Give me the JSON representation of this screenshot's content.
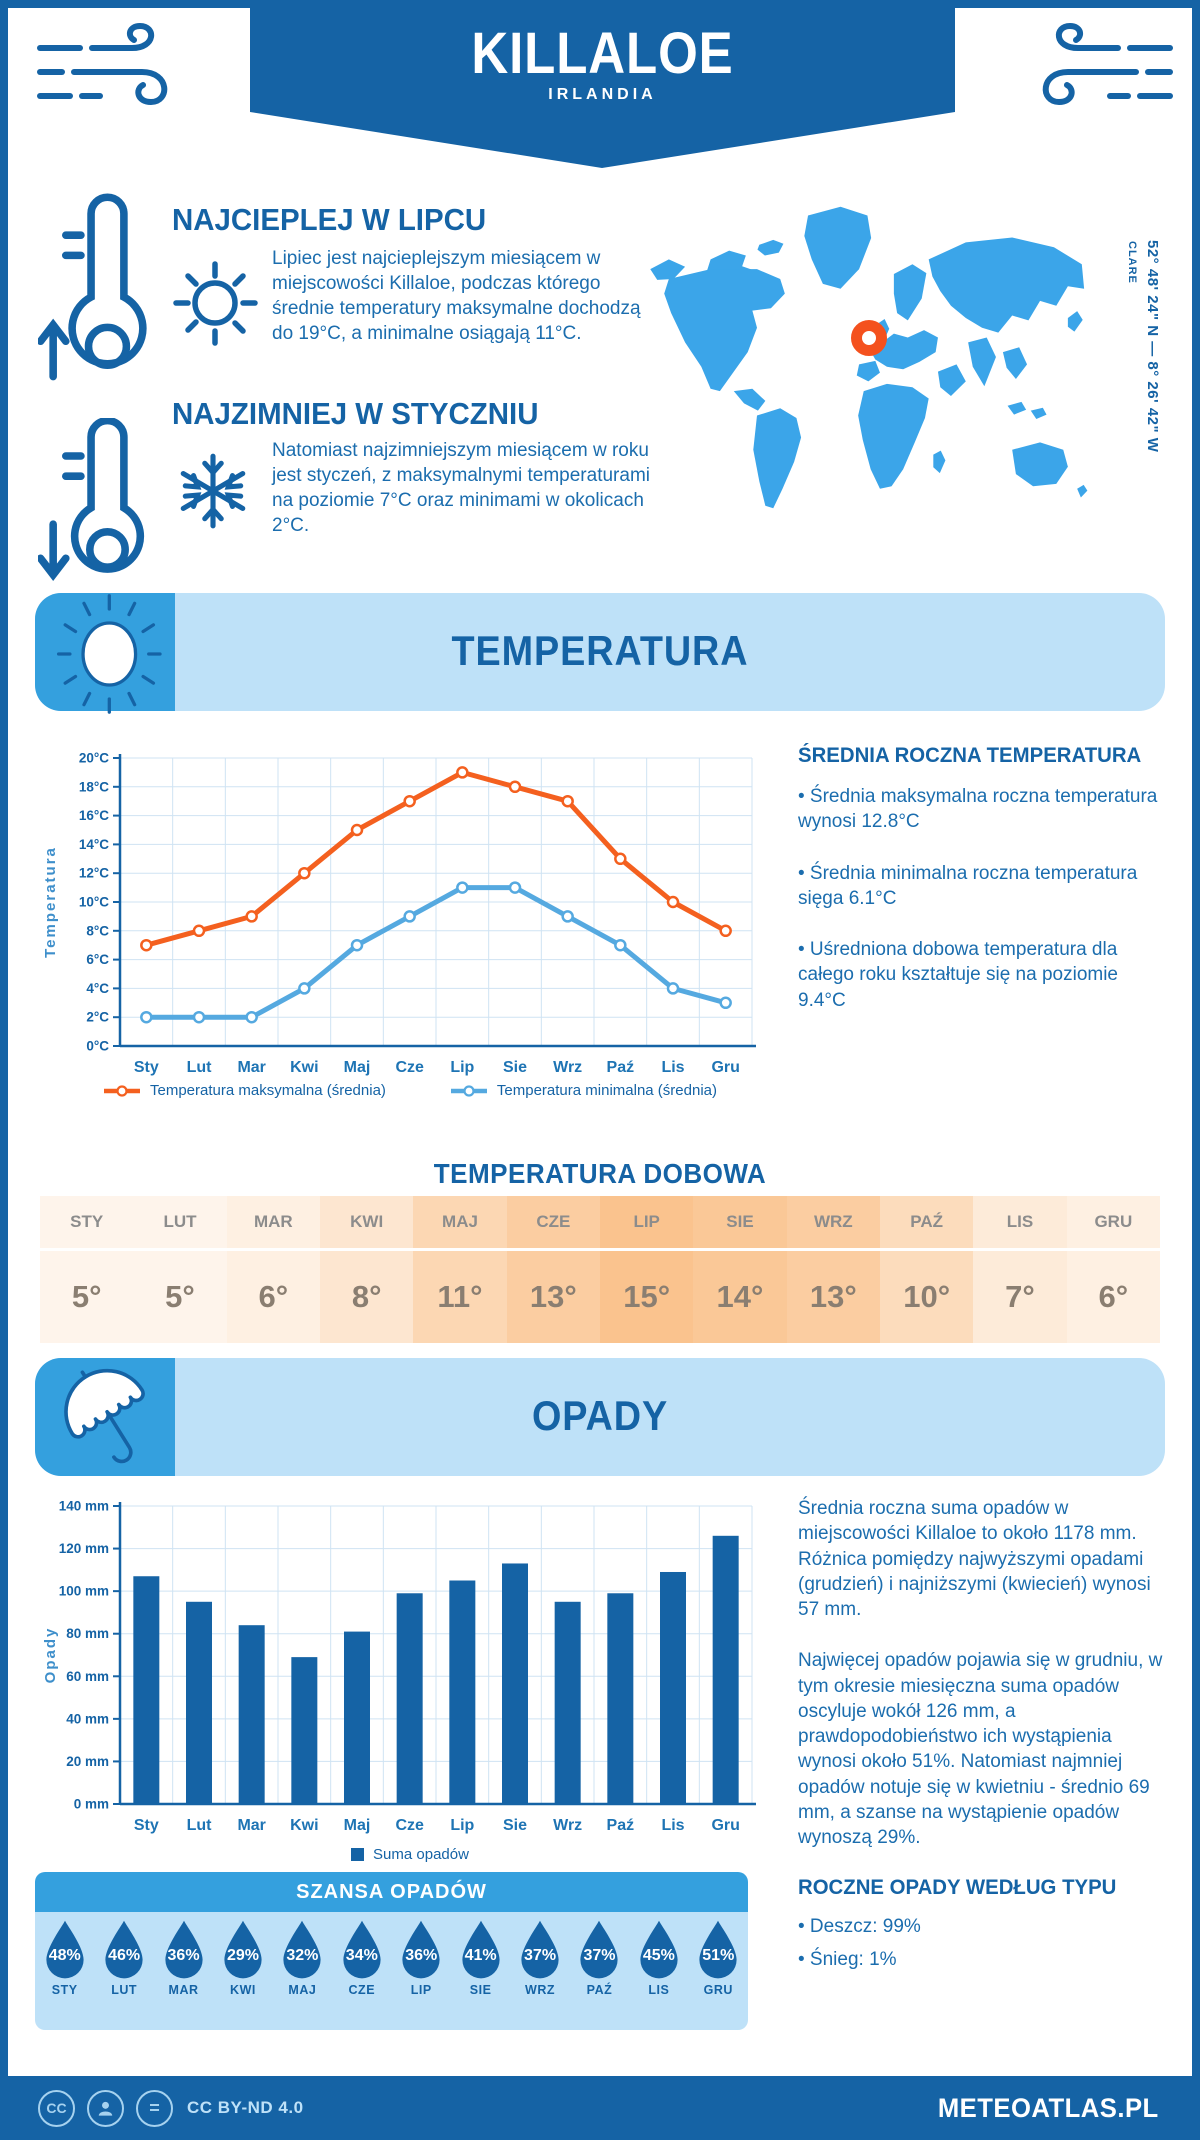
{
  "header": {
    "city": "KILLALOE",
    "country": "IRLANDIA",
    "coords": "52° 48' 24\" N — 8° 26' 42\" W",
    "region": "CLARE"
  },
  "sections": {
    "warmest": {
      "title": "NAJCIEPLEJ W LIPCU",
      "text": "Lipiec jest najcieplejszym miesiącem w miejscowości Killaloe, podczas którego średnie temperatury maksymalne dochodzą do 19°C, a minimalne osiągają 11°C."
    },
    "coldest": {
      "title": "NAJZIMNIEJ W STYCZNIU",
      "text": "Natomiast najzimniejszym miesiącem w roku jest styczeń, z maksymalnymi temperaturami na poziomie 7°C oraz minimami w okolicach 2°C."
    }
  },
  "temperature": {
    "banner": "TEMPERATURA",
    "annual": {
      "title": "ŚREDNIA ROCZNA TEMPERATURA",
      "bullets": [
        "Średnia maksymalna roczna temperatura wynosi 12.8°C",
        "Średnia minimalna roczna temperatura sięga 6.1°C",
        "Uśredniona dobowa temperatura dla całego roku kształtuje się na poziomie 9.4°C"
      ]
    },
    "daily": {
      "title": "TEMPERATURA DOBOWA",
      "months": [
        "STY",
        "LUT",
        "MAR",
        "KWI",
        "MAJ",
        "CZE",
        "LIP",
        "SIE",
        "WRZ",
        "PAŹ",
        "LIS",
        "GRU"
      ],
      "values": [
        "5°",
        "5°",
        "6°",
        "8°",
        "11°",
        "13°",
        "15°",
        "14°",
        "13°",
        "10°",
        "7°",
        "6°"
      ],
      "numbers": [
        5,
        5,
        6,
        8,
        11,
        13,
        15,
        14,
        13,
        10,
        7,
        6
      ]
    }
  },
  "precipitation": {
    "banner": "OPADY",
    "summary1": "Średnia roczna suma opadów w miejscowości Killaloe to około 1178 mm. Różnica pomiędzy najwyższymi opadami (grudzień) i najniższymi (kwiecień) wynosi 57 mm.",
    "summary2": "Najwięcej opadów pojawia się w grudniu, w tym okresie miesięczna suma opadów oscyluje wokół 126 mm, a prawdopodobieństwo ich wystąpienia wynosi około 51%. Natomiast najmniej opadów notuje się w kwietniu - średnio 69 mm, a szanse na wystąpienie opadów wynoszą 29%.",
    "by_type": {
      "title": "ROCZNE OPADY WEDŁUG TYPU",
      "bullets": [
        "Deszcz: 99%",
        "Śnieg: 1%"
      ]
    },
    "chance": {
      "title": "SZANSA OPADÓW",
      "months": [
        "STY",
        "LUT",
        "MAR",
        "KWI",
        "MAJ",
        "CZE",
        "LIP",
        "SIE",
        "WRZ",
        "PAŹ",
        "LIS",
        "GRU"
      ],
      "values": [
        "48%",
        "46%",
        "36%",
        "29%",
        "32%",
        "34%",
        "36%",
        "41%",
        "37%",
        "37%",
        "45%",
        "51%"
      ]
    }
  },
  "footer": {
    "license": "CC BY-ND 4.0",
    "site": "METEOATLAS.PL"
  },
  "colors": {
    "navy": "#1563A5",
    "medium_blue": "#34A0DE",
    "light_blue": "#BEE1F8",
    "map_blue": "#3BA5E9",
    "marker_ring": "#F4511E",
    "max_line": "#F4601F",
    "min_line": "#55A9E0",
    "table_orange_base": "rgb(246,152,60)"
  },
  "chart_data": [
    {
      "type": "line",
      "title": "",
      "xlabel": "",
      "ylabel": "Temperatura",
      "yunit": "°C",
      "ylim": [
        0,
        20
      ],
      "ytick_step": 2,
      "grid": true,
      "legend_position": "bottom",
      "categories": [
        "Sty",
        "Lut",
        "Mar",
        "Kwi",
        "Maj",
        "Cze",
        "Lip",
        "Sie",
        "Wrz",
        "Paź",
        "Lis",
        "Gru"
      ],
      "series": [
        {
          "name": "Temperatura maksymalna (średnia)",
          "color": "#F4601F",
          "values": [
            7,
            8,
            9,
            12,
            15,
            17,
            19,
            18,
            17,
            13,
            10,
            8
          ]
        },
        {
          "name": "Temperatura minimalna (średnia)",
          "color": "#55A9E0",
          "values": [
            2,
            2,
            2,
            4,
            7,
            9,
            11,
            11,
            9,
            7,
            4,
            3
          ]
        }
      ]
    },
    {
      "type": "bar",
      "title": "",
      "xlabel": "",
      "ylabel": "Opady",
      "yunit": " mm",
      "ylim": [
        0,
        140
      ],
      "ytick_step": 20,
      "grid": true,
      "legend_position": "bottom",
      "categories": [
        "Sty",
        "Lut",
        "Mar",
        "Kwi",
        "Maj",
        "Cze",
        "Lip",
        "Sie",
        "Wrz",
        "Paź",
        "Lis",
        "Gru"
      ],
      "series": [
        {
          "name": "Suma opadów",
          "color": "#1563A5",
          "values": [
            107,
            95,
            84,
            69,
            81,
            99,
            105,
            113,
            95,
            99,
            109,
            126
          ]
        }
      ]
    }
  ]
}
